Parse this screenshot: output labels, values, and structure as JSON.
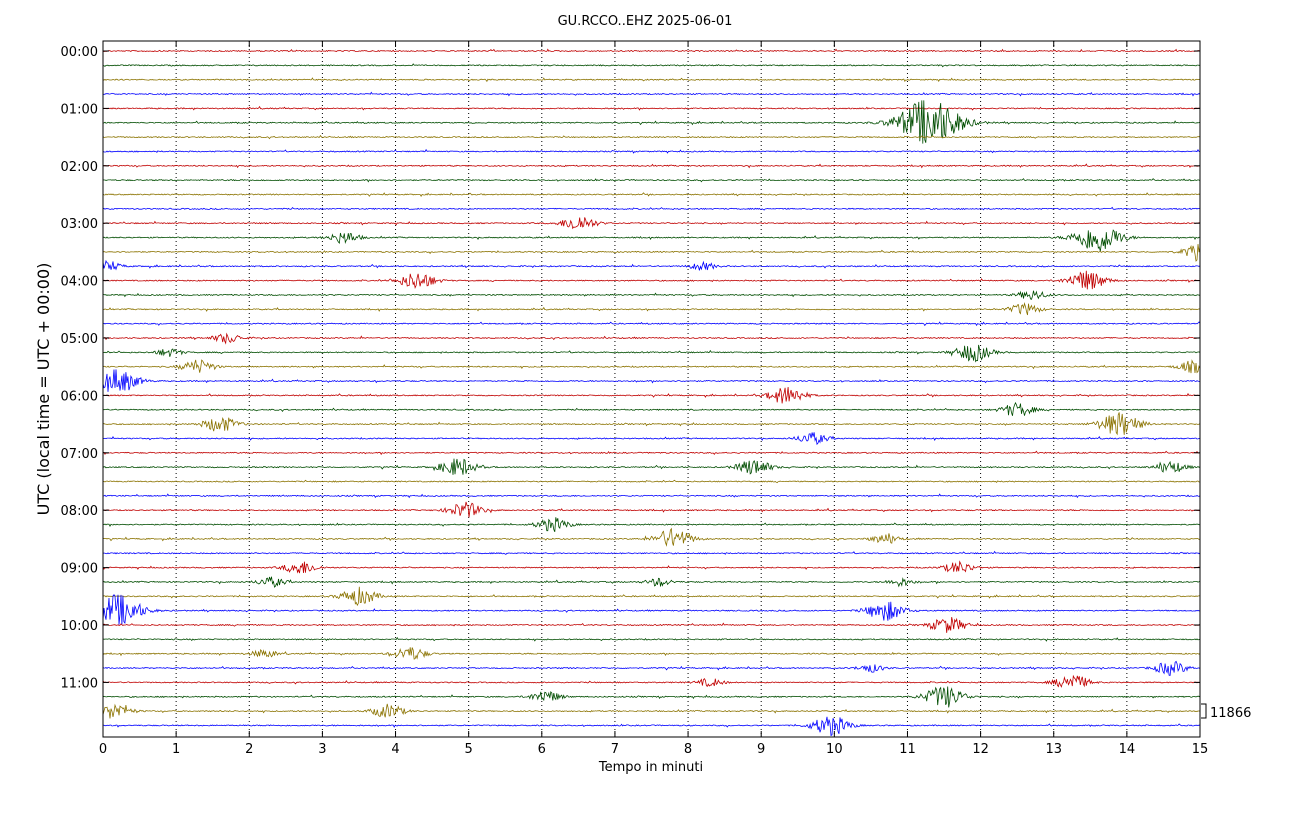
{
  "chart_data": {
    "type": "line",
    "title": "GU.RCCO..EHZ 2025-06-01",
    "xlabel": "Tempo in minuti",
    "ylabel": "UTC (local time = UTC + 00:00)",
    "xlim": [
      0,
      15
    ],
    "x_ticks": [
      "0",
      "1",
      "2",
      "3",
      "4",
      "5",
      "6",
      "7",
      "8",
      "9",
      "10",
      "11",
      "12",
      "13",
      "14",
      "15"
    ],
    "y_tick_labels": [
      "00:00",
      "01:00",
      "02:00",
      "03:00",
      "04:00",
      "05:00",
      "06:00",
      "07:00",
      "08:00",
      "09:00",
      "10:00",
      "11:00"
    ],
    "scale_label": "11866",
    "grid": "vertical dotted lines at each minute",
    "trace_colors": [
      "#c00000",
      "#004d00",
      "#8b7300",
      "#0000ff"
    ],
    "traces": [
      {
        "start": "00:00",
        "events": []
      },
      {
        "start": "00:15",
        "events": []
      },
      {
        "start": "00:30",
        "events": []
      },
      {
        "start": "00:45",
        "events": []
      },
      {
        "start": "01:00",
        "events": []
      },
      {
        "start": "01:15",
        "events": [
          {
            "minute": 11.3,
            "amplitude": 24
          }
        ]
      },
      {
        "start": "01:30",
        "events": []
      },
      {
        "start": "01:45",
        "events": []
      },
      {
        "start": "02:00",
        "events": []
      },
      {
        "start": "02:15",
        "events": []
      },
      {
        "start": "02:30",
        "events": []
      },
      {
        "start": "02:45",
        "events": []
      },
      {
        "start": "03:00",
        "events": [
          {
            "minute": 6.5,
            "amplitude": 8
          }
        ]
      },
      {
        "start": "03:15",
        "events": [
          {
            "minute": 3.3,
            "amplitude": 6
          },
          {
            "minute": 13.6,
            "amplitude": 15
          }
        ]
      },
      {
        "start": "03:30",
        "events": [
          {
            "minute": 15.0,
            "amplitude": 8
          }
        ]
      },
      {
        "start": "03:45",
        "events": [
          {
            "minute": 0.05,
            "amplitude": 5
          },
          {
            "minute": 8.2,
            "amplitude": 4
          }
        ]
      },
      {
        "start": "04:00",
        "events": [
          {
            "minute": 4.3,
            "amplitude": 9
          },
          {
            "minute": 13.45,
            "amplitude": 10
          }
        ]
      },
      {
        "start": "04:15",
        "events": [
          {
            "minute": 12.7,
            "amplitude": 5
          }
        ]
      },
      {
        "start": "04:30",
        "events": [
          {
            "minute": 12.6,
            "amplitude": 6
          }
        ]
      },
      {
        "start": "04:45",
        "events": []
      },
      {
        "start": "05:00",
        "events": [
          {
            "minute": 1.7,
            "amplitude": 5
          }
        ]
      },
      {
        "start": "05:15",
        "events": [
          {
            "minute": 0.9,
            "amplitude": 4
          },
          {
            "minute": 11.9,
            "amplitude": 9
          }
        ]
      },
      {
        "start": "05:30",
        "events": [
          {
            "minute": 1.3,
            "amplitude": 7
          },
          {
            "minute": 14.9,
            "amplitude": 6
          }
        ]
      },
      {
        "start": "05:45",
        "events": [
          {
            "minute": 0.2,
            "amplitude": 12
          }
        ]
      },
      {
        "start": "06:00",
        "events": [
          {
            "minute": 9.35,
            "amplitude": 9
          }
        ]
      },
      {
        "start": "06:15",
        "events": [
          {
            "minute": 12.5,
            "amplitude": 7
          }
        ]
      },
      {
        "start": "06:30",
        "events": [
          {
            "minute": 1.6,
            "amplitude": 8
          },
          {
            "minute": 13.9,
            "amplitude": 12
          }
        ]
      },
      {
        "start": "06:45",
        "events": [
          {
            "minute": 9.7,
            "amplitude": 6
          }
        ]
      },
      {
        "start": "07:00",
        "events": []
      },
      {
        "start": "07:15",
        "events": [
          {
            "minute": 4.85,
            "amplitude": 9
          },
          {
            "minute": 8.9,
            "amplitude": 8
          },
          {
            "minute": 14.6,
            "amplitude": 6
          }
        ]
      },
      {
        "start": "07:30",
        "events": []
      },
      {
        "start": "07:45",
        "events": []
      },
      {
        "start": "08:00",
        "events": [
          {
            "minute": 4.95,
            "amplitude": 8
          }
        ]
      },
      {
        "start": "08:15",
        "events": [
          {
            "minute": 6.15,
            "amplitude": 7
          }
        ]
      },
      {
        "start": "08:30",
        "events": [
          {
            "minute": 7.8,
            "amplitude": 10
          },
          {
            "minute": 10.7,
            "amplitude": 5
          }
        ]
      },
      {
        "start": "08:45",
        "events": []
      },
      {
        "start": "09:00",
        "events": [
          {
            "minute": 2.7,
            "amplitude": 7
          },
          {
            "minute": 11.7,
            "amplitude": 6
          }
        ]
      },
      {
        "start": "09:15",
        "events": [
          {
            "minute": 2.3,
            "amplitude": 5
          },
          {
            "minute": 7.6,
            "amplitude": 4
          },
          {
            "minute": 10.9,
            "amplitude": 4
          }
        ]
      },
      {
        "start": "09:30",
        "events": [
          {
            "minute": 3.5,
            "amplitude": 9
          }
        ]
      },
      {
        "start": "09:45",
        "events": [
          {
            "minute": 0.2,
            "amplitude": 16
          },
          {
            "minute": 10.7,
            "amplitude": 10
          }
        ]
      },
      {
        "start": "10:00",
        "events": [
          {
            "minute": 11.55,
            "amplitude": 8
          }
        ]
      },
      {
        "start": "10:15",
        "events": []
      },
      {
        "start": "10:30",
        "events": [
          {
            "minute": 2.2,
            "amplitude": 4
          },
          {
            "minute": 4.2,
            "amplitude": 7
          }
        ]
      },
      {
        "start": "10:45",
        "events": [
          {
            "minute": 10.5,
            "amplitude": 4
          },
          {
            "minute": 14.6,
            "amplitude": 7
          }
        ]
      },
      {
        "start": "11:00",
        "events": [
          {
            "minute": 8.3,
            "amplitude": 4
          },
          {
            "minute": 13.25,
            "amplitude": 8
          }
        ]
      },
      {
        "start": "11:15",
        "events": [
          {
            "minute": 6.05,
            "amplitude": 6
          },
          {
            "minute": 11.5,
            "amplitude": 11
          }
        ]
      },
      {
        "start": "11:30",
        "events": [
          {
            "minute": 0.15,
            "amplitude": 8
          },
          {
            "minute": 3.9,
            "amplitude": 7
          }
        ]
      },
      {
        "start": "11:45",
        "events": [
          {
            "minute": 9.95,
            "amplitude": 10
          }
        ]
      }
    ]
  }
}
